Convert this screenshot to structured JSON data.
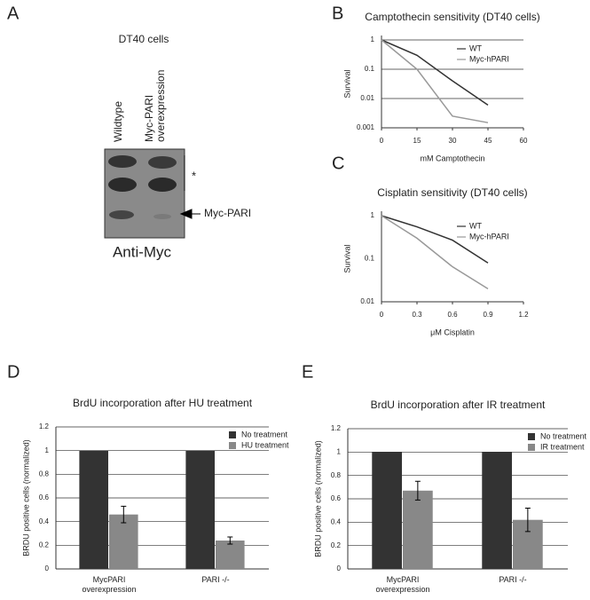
{
  "panel_labels": [
    "A",
    "B",
    "C",
    "D",
    "E"
  ],
  "blot": {
    "title": "DT40 cells",
    "lanes": [
      "Wildtype",
      "Myc-PARI overexpression"
    ],
    "asterisk": "*",
    "band_label": "Myc-PARI",
    "antibody": "Anti-Myc"
  },
  "chart_data": [
    {
      "type": "line",
      "title": "Camptothecin sensitivity (DT40 cells)",
      "x_label": "mM Camptothecin",
      "y_label": "Survival",
      "x": [
        0,
        15,
        30,
        45
      ],
      "xlim": [
        0,
        60
      ],
      "xticks": [
        0,
        15,
        30,
        45,
        60
      ],
      "ylim": [
        0.001,
        1
      ],
      "yticks": [
        1,
        0.1,
        0.01,
        0.001
      ],
      "y_scale": "log",
      "grid": true,
      "legend": "upper right",
      "series": [
        {
          "name": "WT",
          "color": "#333333",
          "values": [
            1,
            0.3,
            0.04,
            0.006
          ]
        },
        {
          "name": "Myc-hPARI",
          "color": "#999999",
          "values": [
            1,
            0.1,
            0.0025,
            0.0015
          ]
        }
      ]
    },
    {
      "type": "line",
      "title": "Cisplatin sensitivity (DT40 cells)",
      "x_label": "μM Cisplatin",
      "y_label": "Survival",
      "x": [
        0,
        0.3,
        0.6,
        0.9
      ],
      "xlim": [
        0,
        1.2
      ],
      "xticks": [
        0,
        0.3,
        0.6,
        0.9,
        1.2
      ],
      "ylim": [
        0.01,
        1
      ],
      "yticks": [
        1,
        0.1,
        0.01
      ],
      "y_scale": "log",
      "grid": false,
      "legend": "upper right",
      "series": [
        {
          "name": "WT",
          "color": "#333333",
          "values": [
            1,
            0.55,
            0.27,
            0.08
          ]
        },
        {
          "name": "Myc-hPARI",
          "color": "#999999",
          "values": [
            1,
            0.3,
            0.065,
            0.02
          ]
        }
      ]
    },
    {
      "type": "bar",
      "title": "BrdU incorporation after HU treatment",
      "y_label": "BRDU positive cells (normalized)",
      "categories": [
        "MycPARI overexpression",
        "PARI -/-"
      ],
      "ylim": [
        0,
        1.2
      ],
      "yticks": [
        0,
        0.2,
        0.4,
        0.6,
        0.8,
        1,
        1.2
      ],
      "grid": true,
      "legend": "upper right",
      "series": [
        {
          "name": "No treatment",
          "color": "#333333",
          "values": [
            1,
            1
          ]
        },
        {
          "name": "HU treatment",
          "color": "#888888",
          "values": [
            0.46,
            0.24
          ],
          "errors": [
            0.07,
            0.03
          ]
        }
      ]
    },
    {
      "type": "bar",
      "title": "BrdU incorporation after IR treatment",
      "y_label": "BRDU positive cells (normalized)",
      "categories": [
        "MycPARI overexpression",
        "PARI -/-"
      ],
      "ylim": [
        0,
        1.2
      ],
      "yticks": [
        0,
        0.2,
        0.4,
        0.6,
        0.8,
        1,
        1.2
      ],
      "grid": true,
      "legend": "upper right",
      "series": [
        {
          "name": "No treatment",
          "color": "#333333",
          "values": [
            1,
            1
          ]
        },
        {
          "name": "IR treatment",
          "color": "#888888",
          "values": [
            0.67,
            0.42
          ],
          "errors": [
            0.08,
            0.1
          ]
        }
      ]
    }
  ]
}
